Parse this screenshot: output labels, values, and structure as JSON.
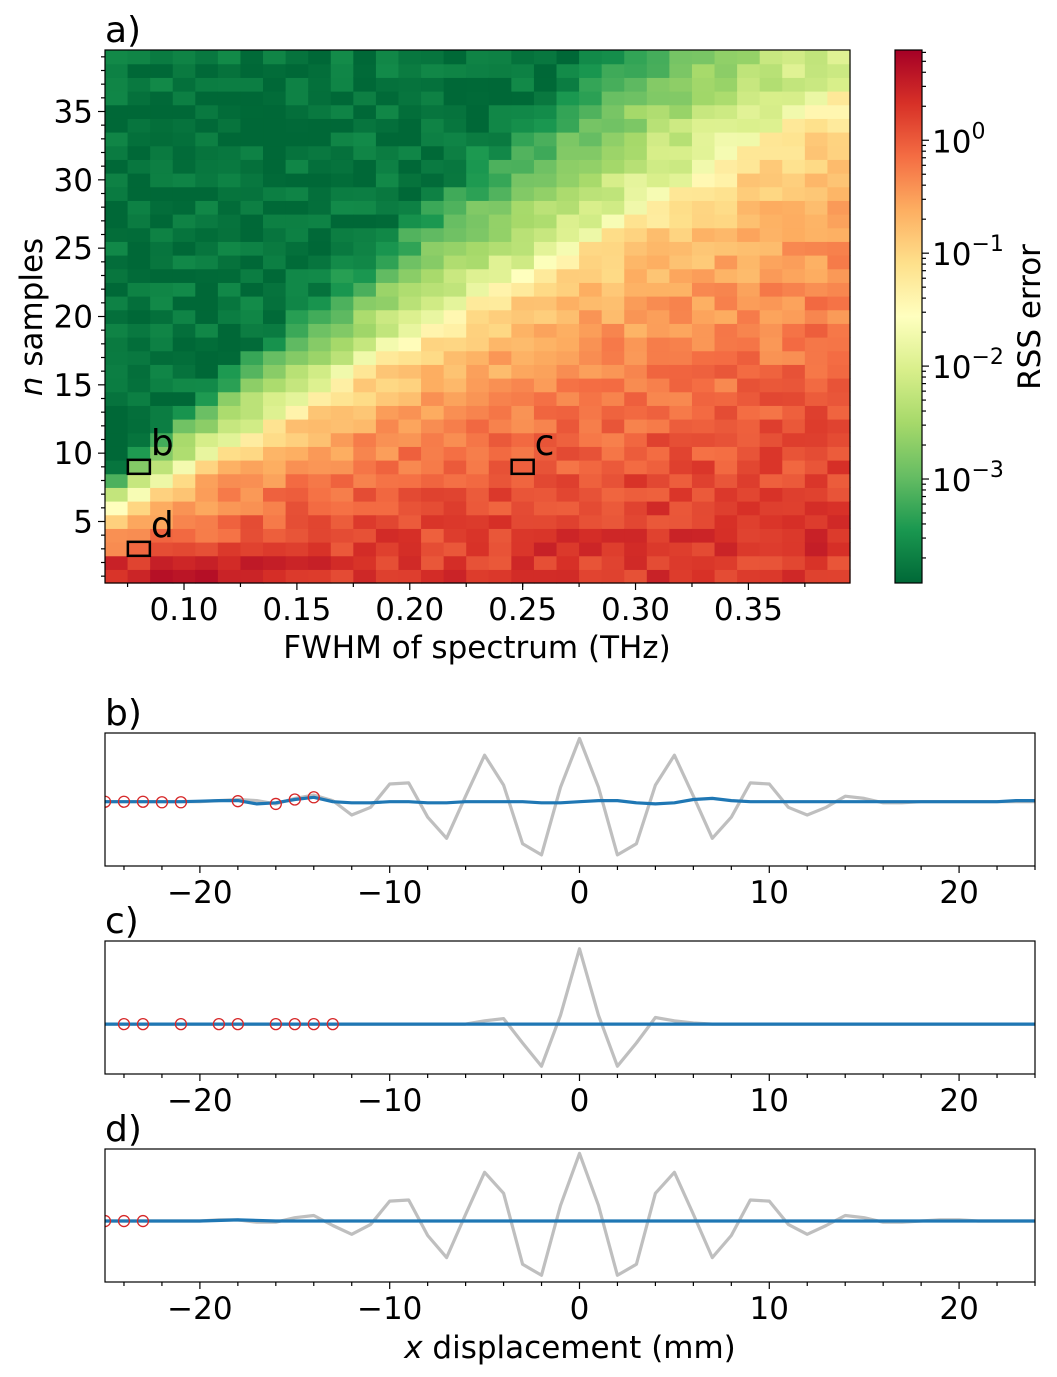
{
  "chart_data": [
    {
      "type": "heatmap",
      "panel_label": "a)",
      "xlabel": "FWHM of spectrum (THz)",
      "ylabel_italic": "n",
      "ylabel_rest": " samples",
      "xlim": [
        0.065,
        0.395
      ],
      "ylim": [
        0.5,
        39.5
      ],
      "x_ticks": [
        "0.10",
        "0.15",
        "0.20",
        "0.25",
        "0.30",
        "0.35"
      ],
      "x_tick_values": [
        0.1,
        0.15,
        0.2,
        0.25,
        0.3,
        0.35
      ],
      "y_ticks": [
        "5",
        "10",
        "15",
        "20",
        "25",
        "30",
        "35"
      ],
      "y_tick_values": [
        5,
        10,
        15,
        20,
        25,
        30,
        35
      ],
      "grid": "33 x 39 cells",
      "colormap": "RdYlGn_r",
      "color_scale": "log",
      "colorbar": {
        "label": "RSS error",
        "tick_base": "10",
        "tick_exponents": [
          "0",
          "−1",
          "−2",
          "−3"
        ],
        "tick_values": [
          1,
          0.1,
          0.01,
          0.001
        ],
        "range": [
          0.00012,
          6.3
        ]
      },
      "markers": [
        {
          "label": "b",
          "fwhm": 0.08,
          "n": 9
        },
        {
          "label": "c",
          "fwhm": 0.25,
          "n": 9
        },
        {
          "label": "d",
          "fwhm": 0.08,
          "n": 3
        }
      ]
    },
    {
      "type": "line",
      "panel_label": "b)",
      "xlim": [
        -25,
        24
      ],
      "x_ticks": [
        "−20",
        "−10",
        "0",
        "10",
        "20"
      ],
      "x_tick_values": [
        -20,
        -10,
        0,
        10,
        20
      ],
      "series": [
        {
          "role": "reference",
          "color": "#bfbfbf",
          "x": [
            -25,
            -24,
            -23,
            -22,
            -21,
            -20,
            -19,
            -18,
            -17,
            -16,
            -15,
            -14,
            -13,
            -12,
            -11,
            -10,
            -9,
            -8,
            -7,
            -6,
            -5,
            -4,
            -3,
            -2,
            -1,
            0,
            1,
            2,
            3,
            4,
            5,
            6,
            7,
            8,
            9,
            10,
            11,
            12,
            13,
            14,
            15,
            16,
            17,
            18,
            19,
            20,
            21,
            22,
            23,
            24
          ],
          "y": [
            0,
            0,
            0,
            0,
            0,
            0,
            0.01,
            0.02,
            0.01,
            -0.02,
            0.03,
            0.06,
            0.01,
            -0.12,
            -0.05,
            0.16,
            0.17,
            -0.14,
            -0.33,
            0.05,
            0.42,
            0.15,
            -0.38,
            -0.48,
            0.13,
            0.57,
            0.13,
            -0.48,
            -0.38,
            0.15,
            0.42,
            0.05,
            -0.33,
            -0.14,
            0.17,
            0.16,
            -0.05,
            -0.12,
            -0.05,
            0.05,
            0.03,
            -0.01,
            -0.01,
            0,
            0,
            0,
            0,
            0,
            0,
            0
          ]
        },
        {
          "role": "reconstruction",
          "color": "#1f77b4",
          "x": [
            -25,
            -24,
            -23,
            -22,
            -21,
            -20,
            -19,
            -18,
            -17,
            -16,
            -15,
            -14,
            -13,
            -12,
            -11,
            -10,
            -9,
            -8,
            -7,
            -6,
            -5,
            -4,
            -3,
            -2,
            -1,
            0,
            1,
            2,
            3,
            4,
            5,
            6,
            7,
            8,
            9,
            10,
            11,
            12,
            13,
            14,
            15,
            16,
            17,
            18,
            19,
            20,
            21,
            22,
            23,
            24
          ],
          "y": [
            0,
            0,
            0,
            0,
            0,
            0.005,
            0.01,
            0.01,
            -0.02,
            -0.01,
            0.02,
            0.04,
            0,
            -0.01,
            -0.01,
            0,
            0,
            -0.01,
            -0.01,
            0,
            0,
            0,
            0,
            -0.01,
            -0.01,
            0,
            0.01,
            0.01,
            -0.01,
            -0.02,
            -0.01,
            0.02,
            0.03,
            0.01,
            0,
            0,
            0,
            0,
            0,
            0,
            0,
            0,
            0,
            0,
            0,
            0,
            0,
            0,
            0.01,
            0.01
          ]
        },
        {
          "role": "samples",
          "color": "#d62728",
          "x": [
            -25,
            -24,
            -23,
            -22,
            -21,
            -18,
            -16,
            -15,
            -14
          ],
          "y": [
            0,
            0,
            0,
            -0.005,
            -0.005,
            0.005,
            -0.02,
            0.02,
            0.04
          ]
        }
      ],
      "ylim": [
        -0.58,
        0.62
      ]
    },
    {
      "type": "line",
      "panel_label": "c)",
      "xlim": [
        -25,
        24
      ],
      "x_ticks": [
        "−20",
        "−10",
        "0",
        "10",
        "20"
      ],
      "x_tick_values": [
        -20,
        -10,
        0,
        10,
        20
      ],
      "series": [
        {
          "role": "reference",
          "color": "#bfbfbf",
          "x": [
            -25,
            -8,
            -7,
            -6,
            -5,
            -4,
            -3,
            -2,
            -1,
            0,
            1,
            2,
            3,
            4,
            5,
            6,
            7,
            24
          ],
          "y": [
            0,
            0,
            0,
            0,
            0.03,
            0.05,
            -0.17,
            -0.38,
            0.08,
            0.68,
            0.08,
            -0.38,
            -0.17,
            0.06,
            0.03,
            0.01,
            0,
            0
          ]
        },
        {
          "role": "reconstruction",
          "color": "#1f77b4",
          "x": [
            -25,
            24
          ],
          "y": [
            0,
            0
          ]
        },
        {
          "role": "samples",
          "color": "#d62728",
          "x": [
            -24,
            -23,
            -21,
            -19,
            -18,
            -16,
            -15,
            -14,
            -13
          ],
          "y": [
            0,
            0,
            0,
            0,
            0,
            0,
            0,
            0,
            0
          ]
        }
      ],
      "ylim": [
        -0.45,
        0.75
      ]
    },
    {
      "type": "line",
      "panel_label": "d)",
      "xlim": [
        -25,
        24
      ],
      "xlabel_italic": "x",
      "xlabel_rest": " displacement (mm)",
      "x_ticks": [
        "−20",
        "−10",
        "0",
        "10",
        "20"
      ],
      "x_tick_values": [
        -20,
        -10,
        0,
        10,
        20
      ],
      "series": [
        {
          "role": "reference",
          "color": "#bfbfbf",
          "x": [
            -25,
            -24,
            -23,
            -22,
            -21,
            -20,
            -19,
            -18,
            -17,
            -16,
            -15,
            -14,
            -13,
            -12,
            -11,
            -10,
            -9,
            -8,
            -7,
            -6,
            -5,
            -4,
            -3,
            -2,
            -1,
            0,
            1,
            2,
            3,
            4,
            5,
            6,
            7,
            8,
            9,
            10,
            11,
            12,
            13,
            14,
            15,
            16,
            17,
            18,
            19,
            20,
            21,
            22,
            23,
            24
          ],
          "y": [
            0,
            0,
            0,
            0,
            0,
            0,
            0.01,
            0.01,
            -0.01,
            -0.01,
            0.03,
            0.05,
            -0.04,
            -0.12,
            -0.03,
            0.18,
            0.19,
            -0.13,
            -0.33,
            0.06,
            0.44,
            0.25,
            -0.39,
            -0.49,
            0.14,
            0.61,
            0.14,
            -0.49,
            -0.39,
            0.25,
            0.44,
            0.06,
            -0.33,
            -0.13,
            0.19,
            0.18,
            -0.03,
            -0.12,
            -0.04,
            0.05,
            0.03,
            -0.01,
            -0.01,
            0,
            0.01,
            0.01,
            0,
            0,
            0,
            0
          ]
        },
        {
          "role": "reconstruction",
          "color": "#1f77b4",
          "x": [
            -25,
            -20,
            -18,
            -16,
            24
          ],
          "y": [
            0,
            0,
            0.01,
            0,
            0
          ]
        },
        {
          "role": "samples",
          "color": "#d62728",
          "x": [
            -25,
            -24,
            -23
          ],
          "y": [
            0,
            0,
            0
          ]
        }
      ],
      "ylim": [
        -0.55,
        0.65
      ]
    }
  ]
}
